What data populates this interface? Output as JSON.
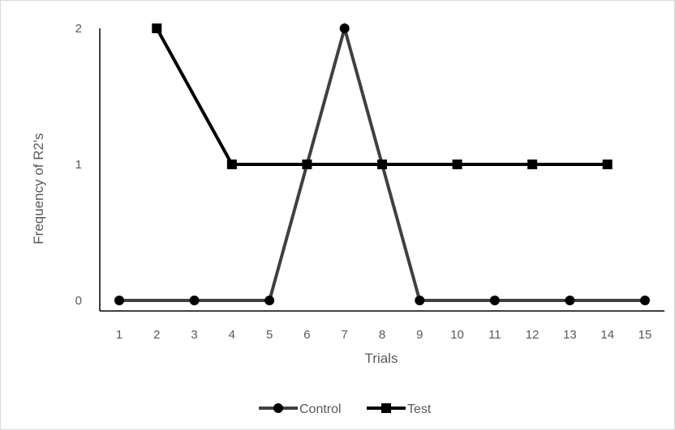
{
  "chart_data": {
    "type": "line",
    "title": "",
    "xlabel": "Trials",
    "ylabel": "Frequency of R2's",
    "x": [
      1,
      2,
      3,
      4,
      5,
      6,
      7,
      8,
      9,
      10,
      11,
      12,
      13,
      14,
      15
    ],
    "x_tick_labels": [
      "1",
      "2",
      "3",
      "4",
      "5",
      "6",
      "7",
      "8",
      "9",
      "10",
      "11",
      "12",
      "13",
      "14",
      "15"
    ],
    "y_tick_labels": [
      "0",
      "1",
      "2"
    ],
    "ylim": [
      0,
      2
    ],
    "grid": false,
    "legend_position": "bottom",
    "series": [
      {
        "name": "Control",
        "marker": "circle",
        "color": "#404040",
        "values": [
          0,
          null,
          0,
          null,
          0,
          1,
          2,
          1,
          0,
          null,
          0,
          null,
          0,
          null,
          0
        ]
      },
      {
        "name": "Test",
        "marker": "square",
        "color": "#000000",
        "values": [
          null,
          2,
          null,
          1,
          null,
          1,
          null,
          1,
          null,
          1,
          null,
          1,
          null,
          1,
          null
        ]
      }
    ]
  }
}
